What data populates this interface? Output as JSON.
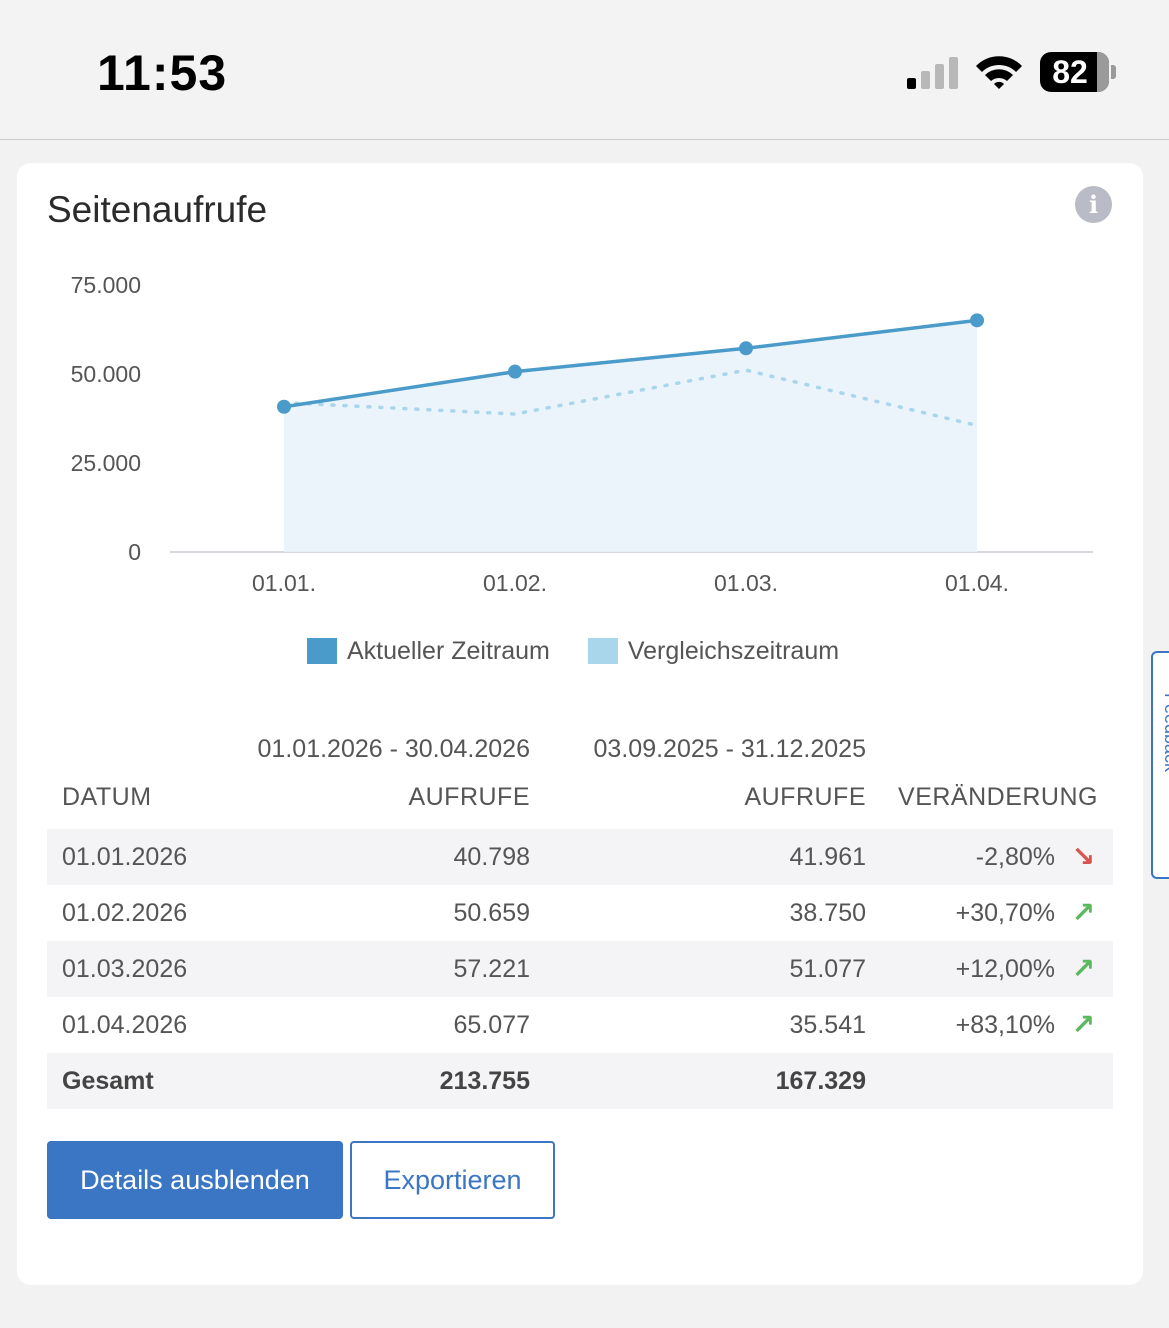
{
  "status_bar": {
    "time": "11:53",
    "battery": "82"
  },
  "card": {
    "title": "Seitenaufrufe",
    "info_icon": "i"
  },
  "chart_data": {
    "type": "area",
    "categories": [
      "01.01.",
      "01.02.",
      "01.03.",
      "01.04."
    ],
    "y_ticks": [
      "75.000",
      "50.000",
      "25.000",
      "0"
    ],
    "ylim": [
      0,
      75000
    ],
    "series": [
      {
        "name": "Aktueller Zeitraum",
        "values": [
          40798,
          50659,
          57221,
          65077
        ],
        "color": "#4a9bc9",
        "style": "solid-area"
      },
      {
        "name": "Vergleichszeitraum",
        "values": [
          41961,
          38750,
          51077,
          35541
        ],
        "color": "#a9d6ea",
        "style": "dotted"
      }
    ],
    "grid": false,
    "legend_position": "bottom"
  },
  "table": {
    "period_current": "01.01.2026 - 30.04.2026",
    "period_compare": "03.09.2025 - 31.12.2025",
    "headers": [
      "DATUM",
      "AUFRUFE",
      "AUFRUFE",
      "VERÄNDERUNG"
    ],
    "rows": [
      {
        "date": "01.01.2026",
        "current": "40.798",
        "compare": "41.961",
        "change": "-2,80%",
        "trend": "down"
      },
      {
        "date": "01.02.2026",
        "current": "50.659",
        "compare": "38.750",
        "change": "+30,70%",
        "trend": "up"
      },
      {
        "date": "01.03.2026",
        "current": "57.221",
        "compare": "51.077",
        "change": "+12,00%",
        "trend": "up"
      },
      {
        "date": "01.04.2026",
        "current": "65.077",
        "compare": "35.541",
        "change": "+83,10%",
        "trend": "up"
      }
    ],
    "total": {
      "label": "Gesamt",
      "current": "213.755",
      "compare": "167.329"
    }
  },
  "buttons": {
    "hide_details": "Details ausblenden",
    "export": "Exportieren"
  },
  "feedback_tab": "Feedback",
  "icons": {
    "trend_down": "↘",
    "trend_up": "↗"
  }
}
